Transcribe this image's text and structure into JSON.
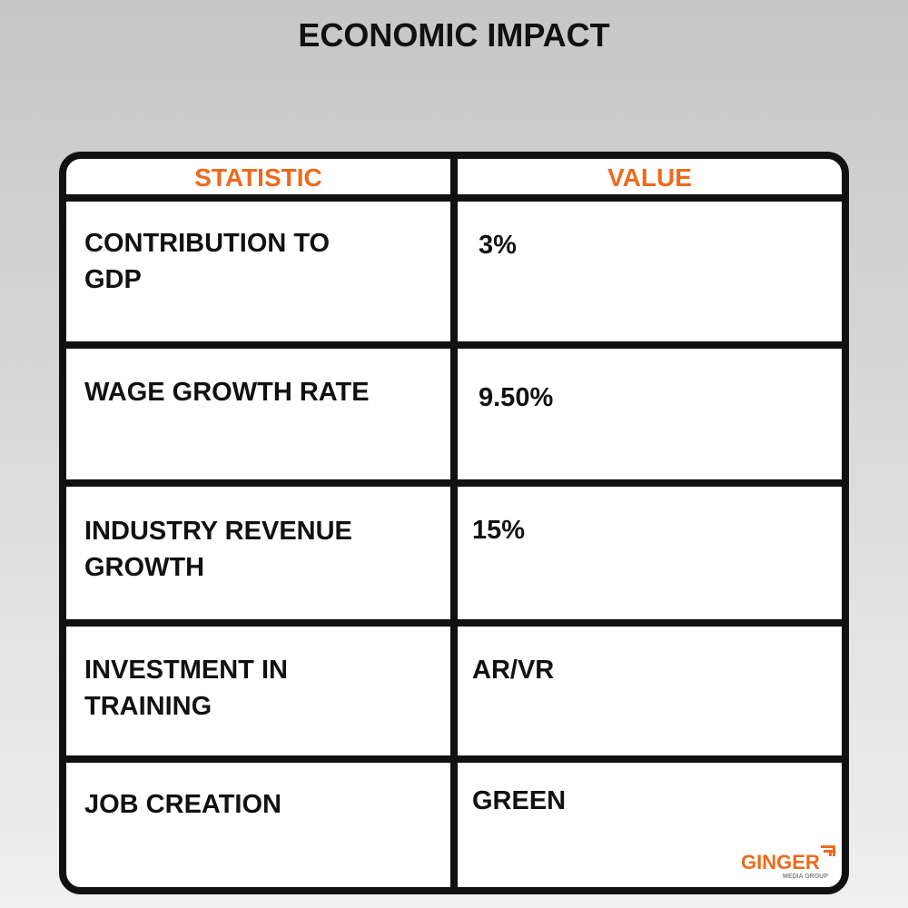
{
  "title": "ECONOMIC IMPACT",
  "table": {
    "header": [
      "STATISTIC",
      "VALUE"
    ],
    "rows": [
      [
        "CONTRIBUTION TO GDP",
        "3%"
      ],
      [
        "WAGE GROWTH RATE",
        "9.50%"
      ],
      [
        "INDUSTRY REVENUE GROWTH",
        "15%"
      ],
      [
        "INVESTMENT IN TRAINING",
        "AR/VR"
      ],
      [
        "JOB CREATION",
        "GREEN"
      ]
    ]
  },
  "logo": {
    "name": "GINGER",
    "tagline": "MEDIA GROUP"
  }
}
